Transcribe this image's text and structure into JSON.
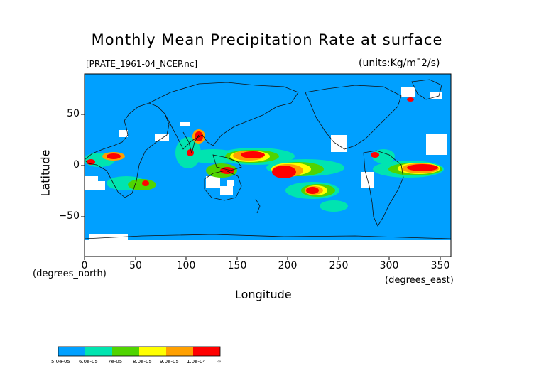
{
  "title": "Monthly Mean Precipitation Rate at surface",
  "source_file": "[PRATE_1961-04_NCEP.nc]",
  "units": "(units:Kg/m¯2/s)",
  "axes": {
    "ylabel": "Latitude",
    "xlabel": "Longitude",
    "xunits_left": "(degrees_north)",
    "xunits_right": "(degrees_east)",
    "yticks": [
      "50",
      "0",
      "−50"
    ],
    "xticks": [
      "0",
      "50",
      "100",
      "150",
      "200",
      "250",
      "300",
      "350"
    ]
  },
  "colorbar": {
    "labels": [
      "5.0e-05",
      "6.0e-05",
      "7e-05",
      "8.0e-05",
      "9.0e-05",
      "1.0e-04",
      "∞"
    ],
    "colors": [
      "#00a0ff",
      "#00e4b0",
      "#50d400",
      "#ffff00",
      "#ffa000",
      "#ff0000"
    ]
  },
  "colors": {
    "ocean": "#00a0ff",
    "coast": "#111111",
    "missing": "#ffffff"
  },
  "map_data": {
    "lon_range": [
      0,
      360
    ],
    "lat_range": [
      -90,
      90
    ],
    "field": "precipitation rate"
  }
}
